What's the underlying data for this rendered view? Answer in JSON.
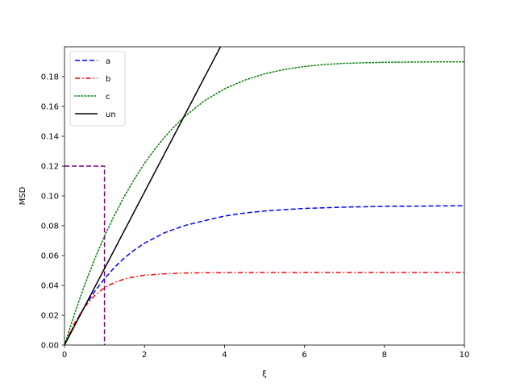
{
  "chart_data": {
    "type": "line",
    "title": "",
    "xlabel": "ξ",
    "ylabel": "MSD",
    "xlim": [
      0,
      10
    ],
    "ylim": [
      0,
      0.2
    ],
    "xticks": [
      "0",
      "2",
      "4",
      "6",
      "8",
      "10"
    ],
    "yticks": [
      "0.00",
      "0.02",
      "0.04",
      "0.06",
      "0.08",
      "0.10",
      "0.12",
      "0.14",
      "0.16",
      "0.18"
    ],
    "grid": false,
    "legend_position": "top-left",
    "series": [
      {
        "name": "a",
        "color": "#0000ff",
        "style": "dashed",
        "x": [
          0,
          0.25,
          0.5,
          0.75,
          1,
          1.25,
          1.5,
          1.75,
          2,
          2.5,
          3,
          3.5,
          4,
          4.5,
          5,
          5.5,
          6,
          7,
          8,
          9,
          10
        ],
        "y": [
          0,
          0.0136,
          0.0255,
          0.0358,
          0.0445,
          0.0521,
          0.0585,
          0.0638,
          0.0683,
          0.0753,
          0.0801,
          0.0834,
          0.0865,
          0.0885,
          0.0899,
          0.0908,
          0.0916,
          0.0925,
          0.093,
          0.0932,
          0.0934
        ]
      },
      {
        "name": "b",
        "color": "#ff0000",
        "style": "dashdot",
        "x": [
          0,
          0.25,
          0.5,
          0.75,
          1,
          1.25,
          1.5,
          1.75,
          2,
          2.5,
          3,
          3.5,
          4,
          5,
          6,
          7,
          8,
          9,
          10
        ],
        "y": [
          0,
          0.0147,
          0.0255,
          0.0331,
          0.0385,
          0.042,
          0.0443,
          0.0458,
          0.0468,
          0.0478,
          0.0483,
          0.0485,
          0.0486,
          0.0487,
          0.0487,
          0.0487,
          0.0487,
          0.0487,
          0.0487
        ]
      },
      {
        "name": "c",
        "color": "#008000",
        "style": "dotted",
        "x": [
          0,
          0.25,
          0.5,
          0.75,
          1,
          1.25,
          1.5,
          1.75,
          2,
          2.25,
          2.5,
          2.75,
          3,
          3.5,
          4,
          4.5,
          5,
          5.5,
          6,
          6.5,
          7,
          8,
          9,
          10
        ],
        "y": [
          0,
          0.0208,
          0.04,
          0.0574,
          0.073,
          0.0871,
          0.0999,
          0.1114,
          0.1218,
          0.131,
          0.1393,
          0.1466,
          0.1531,
          0.1638,
          0.1718,
          0.1776,
          0.1818,
          0.1848,
          0.1868,
          0.1881,
          0.1889,
          0.1896,
          0.1898,
          0.1899
        ]
      },
      {
        "name": "un",
        "color": "#000000",
        "style": "solid",
        "x": [
          0,
          3.9
        ],
        "y": [
          0,
          0.2
        ]
      }
    ],
    "extra_lines": [
      {
        "name": "step-boundary",
        "color": "#800080",
        "style": "dashed",
        "x": [
          0,
          1,
          1
        ],
        "y": [
          0.12,
          0.12,
          0
        ]
      }
    ]
  }
}
